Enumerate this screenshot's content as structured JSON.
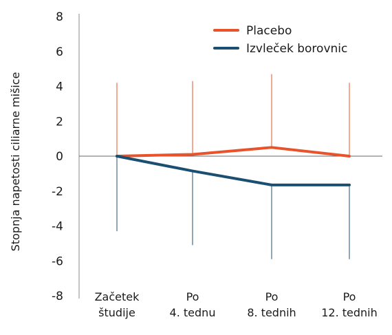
{
  "chart_data": {
    "type": "line",
    "ylabel": "Stopnja napetosti ciliarne mišice",
    "xlabel": "",
    "ylim": [
      -8,
      8
    ],
    "yticks": [
      8,
      6,
      4,
      2,
      0,
      -2,
      -4,
      -6,
      -8
    ],
    "categories": [
      [
        "Začetek",
        "študije"
      ],
      [
        "Po",
        "4. tednu"
      ],
      [
        "Po",
        "8. tednih"
      ],
      [
        "Po",
        "12. tednih"
      ]
    ],
    "series": [
      {
        "name": "Placebo",
        "color": "#e8532b",
        "values": [
          0,
          0.1,
          0.5,
          0
        ],
        "error_upper": [
          4.2,
          4.3,
          4.7,
          4.2
        ],
        "error_lower": [
          0,
          0.1,
          0.5,
          0
        ]
      },
      {
        "name": "Izvleček borovnic",
        "color": "#1b4f72",
        "values": [
          0,
          -0.85,
          -1.65,
          -1.65
        ],
        "error_upper": [
          0,
          -0.85,
          -1.65,
          -1.65
        ],
        "error_lower": [
          -4.3,
          -5.1,
          -5.9,
          -5.9
        ]
      }
    ],
    "legend": "top-right",
    "grid": false
  }
}
